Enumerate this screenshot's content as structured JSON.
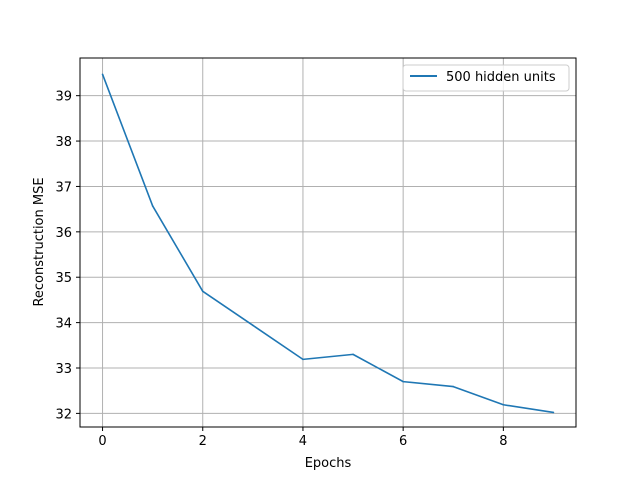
{
  "chart_data": {
    "type": "line",
    "title": "",
    "xlabel": "Epochs",
    "ylabel": "Reconstruction MSE",
    "x": [
      0,
      1,
      2,
      3,
      4,
      5,
      6,
      7,
      8,
      9
    ],
    "series": [
      {
        "name": "500 hidden units",
        "color": "#1f77b4",
        "values": [
          39.47,
          36.57,
          34.69,
          33.94,
          33.19,
          33.3,
          32.7,
          32.59,
          32.19,
          32.02
        ]
      }
    ],
    "xlim": [
      -0.45,
      9.45
    ],
    "ylim": [
      31.7,
      39.83
    ],
    "xticks": [
      0,
      2,
      4,
      6,
      8
    ],
    "yticks": [
      32,
      33,
      34,
      35,
      36,
      37,
      38,
      39
    ],
    "xtick_labels": [
      "0",
      "2",
      "4",
      "6",
      "8"
    ],
    "ytick_labels": [
      "32",
      "33",
      "34",
      "35",
      "36",
      "37",
      "38",
      "39"
    ],
    "grid": true,
    "legend_position": "top-right"
  }
}
